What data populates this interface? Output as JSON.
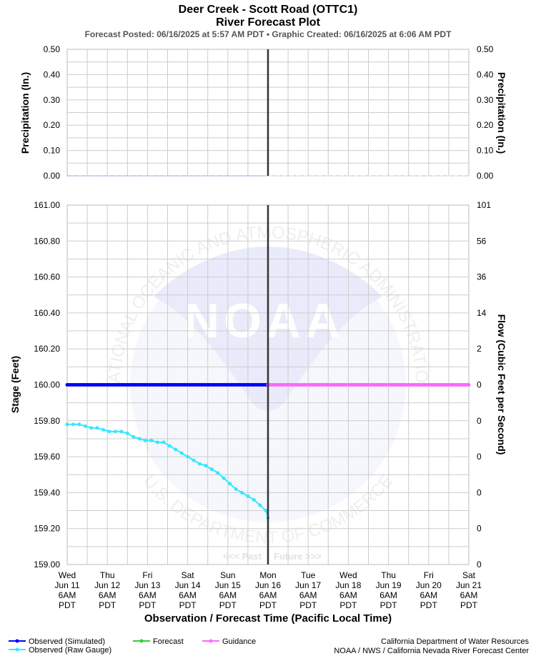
{
  "header": {
    "title": "Deer Creek - Scott Road (OTTC1)",
    "subtitle": "River Forecast Plot",
    "posted_line": "Forecast Posted: 06/16/2025 at 5:57 AM PDT  •  Graphic Created: 06/16/2025 at 6:06 AM PDT"
  },
  "colors": {
    "observed_simulated": "#0000ff",
    "observed_raw": "#33e8ff",
    "forecast": "#33cc33",
    "guidance": "#ff66ff",
    "now_line": "#333333",
    "precip_line": "#9999ee"
  },
  "watermark": {
    "logo_text": "NOAA",
    "ring_top": "NATIONAL OCEANIC AND ATMOSPHERIC ADMINISTRATION",
    "ring_bottom": "U.S. DEPARTMENT OF COMMERCE",
    "past_label": "<<< Past",
    "future_label": "Future >>>"
  },
  "x_axis": {
    "label": "Observation / Forecast Time (Pacific Local Time)",
    "ticks": [
      {
        "day": "Wed",
        "date": "Jun 11",
        "time": "6AM",
        "tz": "PDT"
      },
      {
        "day": "Thu",
        "date": "Jun 12",
        "time": "6AM",
        "tz": "PDT"
      },
      {
        "day": "Fri",
        "date": "Jun 13",
        "time": "6AM",
        "tz": "PDT"
      },
      {
        "day": "Sat",
        "date": "Jun 14",
        "time": "6AM",
        "tz": "PDT"
      },
      {
        "day": "Sun",
        "date": "Jun 15",
        "time": "6AM",
        "tz": "PDT"
      },
      {
        "day": "Mon",
        "date": "Jun 16",
        "time": "6AM",
        "tz": "PDT"
      },
      {
        "day": "Tue",
        "date": "Jun 17",
        "time": "6AM",
        "tz": "PDT"
      },
      {
        "day": "Wed",
        "date": "Jun 18",
        "time": "6AM",
        "tz": "PDT"
      },
      {
        "day": "Thu",
        "date": "Jun 19",
        "time": "6AM",
        "tz": "PDT"
      },
      {
        "day": "Fri",
        "date": "Jun 20",
        "time": "6AM",
        "tz": "PDT"
      },
      {
        "day": "Sat",
        "date": "Jun 21",
        "time": "6AM",
        "tz": "PDT"
      }
    ]
  },
  "legend": {
    "observed_simulated": "Observed (Simulated)",
    "observed_raw": "Observed (Raw Gauge)",
    "forecast": "Forecast",
    "guidance": "Guidance"
  },
  "credits": {
    "line1": "California Department of Water Resources",
    "line2": "NOAA / NWS / California Nevada River Forecast Center"
  },
  "chart_data": [
    {
      "type": "line",
      "ylabel_left": "Precipitation (In.)",
      "ylabel_right": "Precipitation (In.)",
      "ylim": [
        0,
        0.5
      ],
      "yticks": [
        "0.00",
        "0.10",
        "0.20",
        "0.30",
        "0.40",
        "0.50"
      ],
      "xlim_days": [
        0,
        10
      ],
      "now_day": 5,
      "series": [
        {
          "key": "precip_observed",
          "x_days": [
            0,
            5
          ],
          "values": [
            0,
            0
          ]
        },
        {
          "key": "precip_forecast",
          "x_days": [
            5,
            10
          ],
          "values": [
            0,
            0
          ]
        }
      ]
    },
    {
      "type": "line",
      "ylabel_left": "Stage (Feet)",
      "ylabel_right": "Flow (Cubic Feet per Second)",
      "ylim": [
        159.0,
        161.0
      ],
      "yticks": [
        "159.00",
        "159.20",
        "159.40",
        "159.60",
        "159.80",
        "160.00",
        "160.20",
        "160.40",
        "160.60",
        "160.80",
        "161.00"
      ],
      "yticks_right": [
        "0",
        "0",
        "0",
        "0",
        "0",
        "0",
        "2",
        "14",
        "36",
        "56",
        "101"
      ],
      "xlim_days": [
        0,
        10
      ],
      "now_day": 5,
      "series": [
        {
          "key": "observed_simulated",
          "x_days": [
            0,
            5
          ],
          "values": [
            160.0,
            160.0
          ]
        },
        {
          "key": "guidance",
          "x_days": [
            5,
            10
          ],
          "values": [
            160.0,
            160.0
          ]
        },
        {
          "key": "observed_raw",
          "x_days": [
            0,
            0.15,
            0.3,
            0.45,
            0.6,
            0.75,
            0.9,
            1.05,
            1.2,
            1.35,
            1.5,
            1.65,
            1.8,
            1.95,
            2.1,
            2.25,
            2.4,
            2.55,
            2.7,
            2.85,
            3.0,
            3.15,
            3.3,
            3.45,
            3.6,
            3.75,
            3.9,
            4.05,
            4.2,
            4.35,
            4.5,
            4.65,
            4.8,
            4.95,
            5.0
          ],
          "values": [
            159.78,
            159.78,
            159.78,
            159.77,
            159.76,
            159.76,
            159.75,
            159.74,
            159.74,
            159.74,
            159.73,
            159.71,
            159.7,
            159.69,
            159.69,
            159.68,
            159.68,
            159.66,
            159.64,
            159.62,
            159.6,
            159.58,
            159.56,
            159.55,
            159.53,
            159.51,
            159.48,
            159.45,
            159.42,
            159.4,
            159.38,
            159.36,
            159.33,
            159.3,
            159.26
          ]
        }
      ]
    }
  ]
}
